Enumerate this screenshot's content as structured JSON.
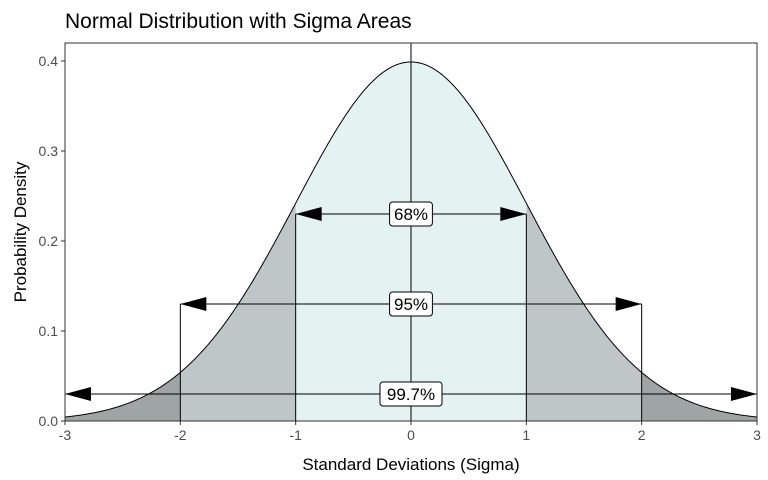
{
  "chart_data": {
    "type": "area",
    "title": "Normal Distribution with Sigma Areas",
    "xlabel": "Standard Deviations (Sigma)",
    "ylabel": "Probability Density",
    "xlim": [
      -3,
      3
    ],
    "ylim": [
      0,
      0.42
    ],
    "x_ticks": [
      -3,
      -2,
      -1,
      0,
      1,
      2,
      3
    ],
    "y_ticks": [
      0.0,
      0.1,
      0.2,
      0.3,
      0.4
    ],
    "x_tick_labels": [
      "-3",
      "-2",
      "-1",
      "0",
      "1",
      "2",
      "3"
    ],
    "y_tick_labels": [
      "0.0",
      "0.1",
      "0.2",
      "0.3",
      "0.4"
    ],
    "curve": {
      "x": [
        -3.0,
        -2.75,
        -2.5,
        -2.25,
        -2.0,
        -1.75,
        -1.5,
        -1.25,
        -1.0,
        -0.75,
        -0.5,
        -0.25,
        0.0,
        0.25,
        0.5,
        0.75,
        1.0,
        1.25,
        1.5,
        1.75,
        2.0,
        2.25,
        2.5,
        2.75,
        3.0
      ],
      "y": [
        0.0044,
        0.0091,
        0.0175,
        0.0317,
        0.054,
        0.0863,
        0.1295,
        0.1826,
        0.242,
        0.3011,
        0.3521,
        0.3867,
        0.3989,
        0.3867,
        0.3521,
        0.3011,
        0.242,
        0.1826,
        0.1295,
        0.0863,
        0.054,
        0.0317,
        0.0175,
        0.0091,
        0.0044
      ]
    },
    "shaded_regions": [
      {
        "from": -3,
        "to": 3,
        "color": "#9fa5a5"
      },
      {
        "from": -2,
        "to": 2,
        "color": "#bfc6c7"
      },
      {
        "from": -1,
        "to": 1,
        "color": "#e4f2f1"
      }
    ],
    "annotations": [
      {
        "label": "68%",
        "x_from": -1,
        "x_to": 1,
        "y": 0.23
      },
      {
        "label": "95%",
        "x_from": -2,
        "x_to": 2,
        "y": 0.13
      },
      {
        "label": "99.7%",
        "x_from": -3,
        "x_to": 3,
        "y": 0.03
      }
    ],
    "reference_line_x": 0,
    "grid": false
  }
}
